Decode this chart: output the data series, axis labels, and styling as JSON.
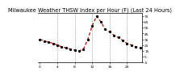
{
  "title": "Milwaukee Weather THSW Index per Hour (F) (Last 24 Hours)",
  "hours": [
    0,
    1,
    2,
    3,
    4,
    5,
    6,
    7,
    8,
    9,
    10,
    11,
    12,
    13,
    14,
    15,
    16,
    17,
    18,
    19,
    20,
    21,
    22,
    23
  ],
  "values": [
    35,
    32,
    30,
    28,
    25,
    22,
    20,
    18,
    16,
    15,
    18,
    35,
    58,
    75,
    65,
    52,
    48,
    42,
    38,
    33,
    28,
    25,
    22,
    20
  ],
  "line_color": "#cc0000",
  "marker_color": "#000000",
  "bg_color": "#ffffff",
  "plot_bg_color": "#ffffff",
  "grid_color": "#999999",
  "ylim": [
    -5,
    80
  ],
  "xlim": [
    -0.5,
    23.5
  ],
  "yticks": [
    -5,
    5,
    15,
    25,
    35,
    45,
    55,
    65,
    75
  ],
  "xtick_positions": [
    0,
    4,
    8,
    12,
    16,
    20
  ],
  "vgrid_positions": [
    4,
    8,
    12,
    16,
    20
  ],
  "title_fontsize": 4.8,
  "tick_fontsize": 3.2,
  "linewidth": 0.9,
  "markersize": 1.8
}
